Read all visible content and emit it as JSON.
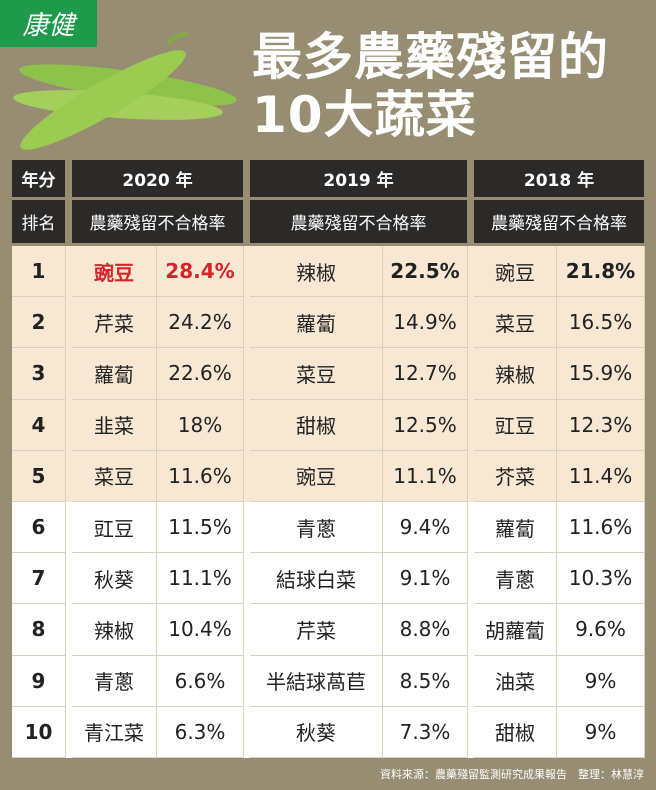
{
  "logo": "康健",
  "title_line1": "最多農藥殘留的",
  "title_line2": "10大蔬菜",
  "header": {
    "year_label": "年分",
    "rank_label": "排名",
    "years": [
      "2020 年",
      "2019 年",
      "2018 年"
    ],
    "metric": "農藥殘留不合格率"
  },
  "rows": [
    {
      "rank": "1",
      "y2020": [
        "豌豆",
        "28.4%"
      ],
      "y2019": [
        "辣椒",
        "22.5%"
      ],
      "y2018": [
        "豌豆",
        "21.8%"
      ]
    },
    {
      "rank": "2",
      "y2020": [
        "芹菜",
        "24.2%"
      ],
      "y2019": [
        "蘿蔔",
        "14.9%"
      ],
      "y2018": [
        "菜豆",
        "16.5%"
      ]
    },
    {
      "rank": "3",
      "y2020": [
        "蘿蔔",
        "22.6%"
      ],
      "y2019": [
        "菜豆",
        "12.7%"
      ],
      "y2018": [
        "辣椒",
        "15.9%"
      ]
    },
    {
      "rank": "4",
      "y2020": [
        "韭菜",
        "18%"
      ],
      "y2019": [
        "甜椒",
        "12.5%"
      ],
      "y2018": [
        "豇豆",
        "12.3%"
      ]
    },
    {
      "rank": "5",
      "y2020": [
        "菜豆",
        "11.6%"
      ],
      "y2019": [
        "豌豆",
        "11.1%"
      ],
      "y2018": [
        "芥菜",
        "11.4%"
      ]
    },
    {
      "rank": "6",
      "y2020": [
        "豇豆",
        "11.5%"
      ],
      "y2019": [
        "青蔥",
        "9.4%"
      ],
      "y2018": [
        "蘿蔔",
        "11.6%"
      ]
    },
    {
      "rank": "7",
      "y2020": [
        "秋葵",
        "11.1%"
      ],
      "y2019": [
        "結球白菜",
        "9.1%"
      ],
      "y2018": [
        "青蔥",
        "10.3%"
      ]
    },
    {
      "rank": "8",
      "y2020": [
        "辣椒",
        "10.4%"
      ],
      "y2019": [
        "芹菜",
        "8.8%"
      ],
      "y2018": [
        "胡蘿蔔",
        "9.6%"
      ]
    },
    {
      "rank": "9",
      "y2020": [
        "青蔥",
        "6.6%"
      ],
      "y2019": [
        "半結球萵苣",
        "8.5%"
      ],
      "y2018": [
        "油菜",
        "9%"
      ]
    },
    {
      "rank": "10",
      "y2020": [
        "青江菜",
        "6.3%"
      ],
      "y2019": [
        "秋葵",
        "7.3%"
      ],
      "y2018": [
        "甜椒",
        "9%"
      ]
    }
  ],
  "footer": "資料來源：農藥殘留監測研究成果報告　整理：林慧淳",
  "colors": {
    "background": "#978d73",
    "header": "#2b2a29",
    "highlight_rows": "#f8e8d3",
    "highlight_text": "#d6242a",
    "logo": "#1f9a4a"
  }
}
